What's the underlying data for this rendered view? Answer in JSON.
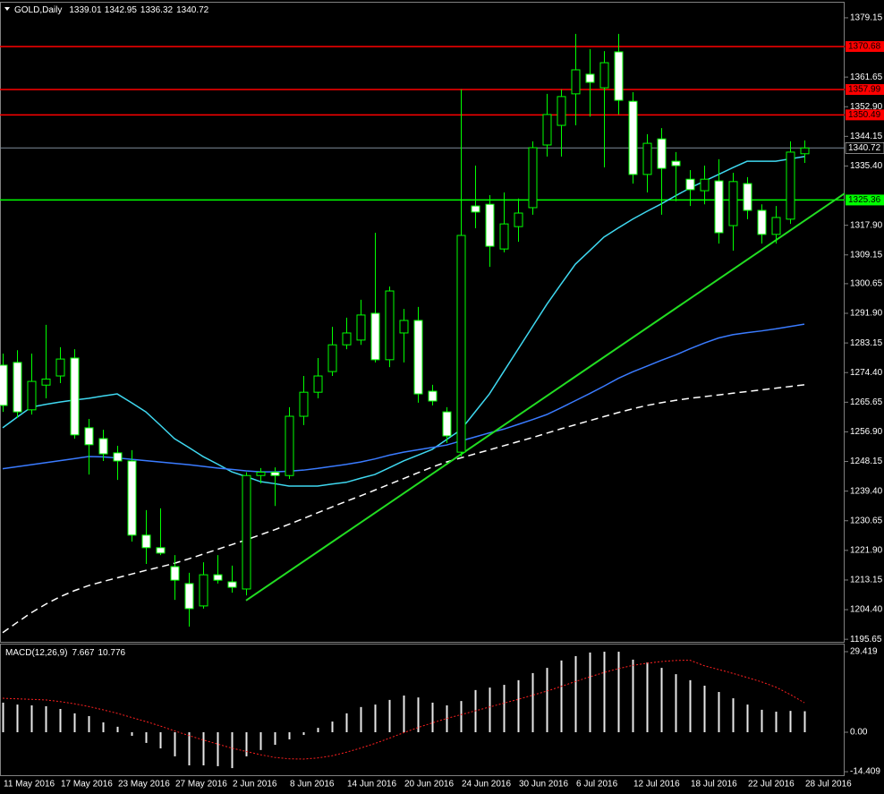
{
  "chart_data": [
    {
      "type": "candlestick",
      "title": "GOLD,Daily",
      "categories": [
        "11 May 2016",
        null,
        null,
        null,
        "17 May 2016",
        null,
        null,
        null,
        "23 May 2016",
        null,
        null,
        null,
        "27 May 2016",
        null,
        null,
        null,
        "2 Jun 2016",
        null,
        null,
        null,
        "8 Jun 2016",
        null,
        null,
        null,
        "14 Jun 2016",
        null,
        null,
        null,
        "20 Jun 2016",
        null,
        null,
        null,
        "24 Jun 2016",
        null,
        null,
        null,
        "30 Jun 2016",
        null,
        null,
        null,
        "6 Jul 2016",
        null,
        null,
        null,
        "12 Jul 2016",
        null,
        null,
        null,
        "18 Jul 2016",
        null,
        null,
        null,
        "22 Jul 2016",
        null,
        null,
        null,
        "28 Jul 2016"
      ],
      "open": [
        1276.6,
        1277.4,
        1263.4,
        1270.7,
        1273.4,
        1278.7,
        1258.1,
        1254.9,
        1250.7,
        1248.3,
        1226.4,
        1222.7,
        1217.1,
        1212.1,
        1205.5,
        1214.7,
        1212.6,
        1210.5,
        1244.0,
        1245.0,
        1244.0,
        1261.5,
        1268.6,
        1274.7,
        1282.6,
        1284.0,
        1291.9,
        1278.2,
        1286.1,
        1289.8,
        1268.9,
        1262.8,
        1250.9,
        1323.6,
        1324.1,
        1310.9,
        1317.5,
        1323.1,
        1341.6,
        1347.4,
        1356.7,
        1362.5,
        1358.5,
        1369.1,
        1354.5,
        1332.9,
        1343.4,
        1336.8,
        1331.5,
        1328.1,
        1331.0,
        1317.8,
        1330.2,
        1322.3,
        1315.2,
        1319.7,
        1339.01
      ],
      "high": [
        1280.0,
        1281.0,
        1280.0,
        1288.5,
        1281.9,
        1281.3,
        1260.7,
        1257.5,
        1252.8,
        1251.5,
        1233.8,
        1234.3,
        1220.5,
        1215.3,
        1218.4,
        1220.5,
        1217.4,
        1245.0,
        1246.2,
        1246.4,
        1264.2,
        1273.4,
        1278.7,
        1287.9,
        1290.6,
        1295.9,
        1315.7,
        1299.8,
        1293.2,
        1293.8,
        1270.8,
        1264.2,
        1358.0,
        1335.5,
        1326.8,
        1327.6,
        1325.8,
        1342.7,
        1356.7,
        1358.0,
        1374.4,
        1369.9,
        1369.3,
        1374.4,
        1357.2,
        1344.8,
        1346.6,
        1339.5,
        1334.2,
        1335.5,
        1337.4,
        1333.4,
        1332.1,
        1324.1,
        1323.6,
        1342.7,
        1342.95
      ],
      "low": [
        1262.8,
        1261.0,
        1262.0,
        1266.8,
        1271.3,
        1254.9,
        1244.3,
        1248.3,
        1242.7,
        1224.5,
        1217.9,
        1220.5,
        1207.3,
        1199.4,
        1204.7,
        1212.1,
        1209.4,
        1208.6,
        1241.7,
        1235.0,
        1243.0,
        1258.9,
        1266.8,
        1273.4,
        1281.3,
        1282.6,
        1277.4,
        1276.0,
        1277.4,
        1265.5,
        1264.7,
        1253.6,
        1249.6,
        1317.0,
        1305.6,
        1309.9,
        1313.0,
        1321.0,
        1338.2,
        1338.2,
        1347.4,
        1350.0,
        1335.0,
        1350.6,
        1330.2,
        1327.6,
        1321.0,
        1325.0,
        1323.6,
        1324.1,
        1312.5,
        1310.4,
        1319.7,
        1312.5,
        1312.5,
        1318.3,
        1336.32
      ],
      "close": [
        1264.7,
        1262.8,
        1271.8,
        1272.5,
        1278.4,
        1256.0,
        1253.1,
        1250.4,
        1248.3,
        1226.4,
        1222.7,
        1221.1,
        1213.1,
        1204.7,
        1214.7,
        1213.1,
        1211.0,
        1244.0,
        1245.0,
        1244.0,
        1261.5,
        1268.6,
        1273.4,
        1282.6,
        1286.1,
        1291.4,
        1278.2,
        1298.5,
        1289.8,
        1268.1,
        1266.0,
        1255.7,
        1314.9,
        1321.8,
        1311.7,
        1318.3,
        1321.5,
        1340.8,
        1350.6,
        1355.9,
        1363.8,
        1360.1,
        1365.9,
        1354.8,
        1332.9,
        1342.1,
        1334.7,
        1335.5,
        1328.4,
        1331.5,
        1315.7,
        1330.8,
        1322.3,
        1315.2,
        1320.2,
        1339.5,
        1340.72
      ],
      "up_color": "#000000",
      "down_color": "#ffffff",
      "wick_color": "#00ff00",
      "moving_averages": [
        {
          "color": "#3fd8f0",
          "dash": false,
          "values": [
            1258.1,
            1261.2,
            1264.2,
            1265.0,
            1265.7,
            1266.3,
            1266.8,
            1267.5,
            1268.1,
            1265.5,
            1262.8,
            1258.9,
            1254.9,
            1252.3,
            1249.6,
            1247.4,
            1245.1,
            1243.7,
            1242.2,
            1241.6,
            1240.9,
            1240.9,
            1240.9,
            1241.5,
            1242.0,
            1243.2,
            1244.3,
            1246.3,
            1248.3,
            1250.0,
            1251.7,
            1254.6,
            1257.5,
            1262.8,
            1268.1,
            1274.7,
            1281.3,
            1287.9,
            1294.5,
            1300.5,
            1306.4,
            1310.4,
            1314.4,
            1317.1,
            1319.7,
            1322.0,
            1324.2,
            1326.6,
            1328.9,
            1330.9,
            1332.9,
            1334.9,
            1336.8,
            1336.8,
            1336.8,
            1337.5,
            1338.2
          ]
        },
        {
          "color": "#3a7bff",
          "dash": false,
          "values": [
            1246.0,
            1246.6,
            1247.2,
            1247.8,
            1248.4,
            1249.0,
            1249.6,
            1249.5,
            1249.2,
            1248.8,
            1248.4,
            1248.0,
            1247.6,
            1247.2,
            1246.7,
            1246.2,
            1245.8,
            1245.4,
            1245.1,
            1245.1,
            1245.3,
            1245.6,
            1246.1,
            1246.7,
            1247.3,
            1248.0,
            1248.9,
            1250.0,
            1250.9,
            1251.6,
            1252.3,
            1253.0,
            1254.2,
            1255.4,
            1256.6,
            1257.7,
            1259.1,
            1260.5,
            1262.0,
            1264.0,
            1266.1,
            1268.2,
            1270.4,
            1272.7,
            1274.6,
            1276.3,
            1278.0,
            1279.6,
            1281.4,
            1283.1,
            1284.6,
            1285.6,
            1286.2,
            1286.7,
            1287.3,
            1288.0,
            1288.7
          ]
        },
        {
          "color": "#ffffff",
          "dash": true,
          "values": [
            1197.6,
            1200.6,
            1203.5,
            1206.0,
            1208.2,
            1210.0,
            1211.5,
            1212.7,
            1213.8,
            1214.9,
            1216.0,
            1217.0,
            1218.1,
            1219.4,
            1220.8,
            1222.2,
            1223.6,
            1225.0,
            1226.5,
            1228.0,
            1229.6,
            1231.3,
            1233.0,
            1234.7,
            1236.4,
            1238.0,
            1239.7,
            1241.4,
            1243.1,
            1244.8,
            1246.5,
            1248.0,
            1249.2,
            1250.4,
            1251.6,
            1252.8,
            1254.0,
            1255.2,
            1256.5,
            1257.8,
            1259.0,
            1260.2,
            1261.4,
            1262.6,
            1263.7,
            1264.7,
            1265.5,
            1266.2,
            1266.8,
            1267.3,
            1267.8,
            1268.3,
            1268.8,
            1269.3,
            1269.8,
            1270.3,
            1270.8
          ]
        }
      ],
      "levels": [
        {
          "value": 1370.68,
          "color": "#ff0000",
          "text_color": "#000000"
        },
        {
          "value": 1357.99,
          "color": "#ff0000",
          "text_color": "#000000"
        },
        {
          "value": 1350.49,
          "color": "#ff0000",
          "text_color": "#000000"
        },
        {
          "value": 1325.36,
          "color": "#00ff00",
          "text_color": "#000000"
        }
      ],
      "current_price_line": true,
      "current_price_color": "#7f8c9a",
      "trendline": [
        1207.1,
        1327.3
      ],
      "trendline_color": "#22dd22",
      "ylim": [
        1194.9,
        1382.3
      ],
      "yticks": [
        1379.15,
        1361.65,
        {
          "value": 1352.9,
          "label": "1352.90"
        },
        1344.15,
        {
          "value": 1335.4,
          "label": "1335.40"
        },
        {
          "value": 1317.9,
          "label": "1317.90"
        },
        1309.15,
        1300.65,
        {
          "value": 1291.9,
          "label": "1291.90"
        },
        1283.15,
        {
          "value": 1274.4,
          "label": "1274.40"
        },
        1265.65,
        {
          "value": 1256.9,
          "label": "1256.90"
        },
        1248.15,
        {
          "value": 1239.4,
          "label": "1239.40"
        },
        1230.65,
        {
          "value": 1221.9,
          "label": "1221.90"
        },
        1213.15,
        {
          "value": 1204.4,
          "label": "1204.40"
        },
        1195.65
      ]
    },
    {
      "type": "macd",
      "title": "MACD(12,26,9)",
      "histogram": {
        "color": "#e8e8e8",
        "values": [
          10.8,
          10.1,
          9.8,
          9.5,
          8.5,
          6.9,
          5.9,
          3.6,
          2.0,
          -1.3,
          -3.9,
          -5.9,
          -8.8,
          -12.1,
          -12.1,
          -12.4,
          -13.1,
          -8.8,
          -6.5,
          -4.6,
          -2.6,
          -1.0,
          1.6,
          3.9,
          6.9,
          9.2,
          10.1,
          11.8,
          13.4,
          12.7,
          10.8,
          9.8,
          11.4,
          15.4,
          16.3,
          17.3,
          19.0,
          21.6,
          23.5,
          26.2,
          27.8,
          29.1,
          29.4,
          29.4,
          26.5,
          25.5,
          23.5,
          21.2,
          19.0,
          17.0,
          14.7,
          12.4,
          10.1,
          8.2,
          7.5,
          7.8,
          7.667
        ]
      },
      "signal": {
        "color": "#ff2020",
        "values": [
          12.4,
          12.2,
          12.0,
          11.8,
          11.2,
          10.4,
          9.4,
          8.2,
          6.9,
          5.4,
          3.9,
          2.3,
          0.5,
          -1.2,
          -2.8,
          -4.3,
          -5.8,
          -7.0,
          -8.2,
          -9.2,
          -9.7,
          -9.8,
          -9.4,
          -8.6,
          -7.3,
          -5.8,
          -4.1,
          -2.2,
          -0.2,
          1.7,
          3.4,
          5.0,
          6.4,
          7.8,
          9.2,
          10.6,
          12.0,
          13.5,
          15.0,
          16.7,
          18.5,
          20.2,
          21.8,
          23.2,
          24.4,
          25.2,
          25.8,
          26.2,
          26.3,
          24.3,
          22.9,
          21.5,
          20.0,
          18.4,
          16.5,
          13.8,
          10.776
        ]
      },
      "ylim": [
        -15.69,
        32.03
      ],
      "yticks": [
        29.419,
        {
          "value": 0,
          "label": "0.00"
        },
        -14.409
      ]
    }
  ]
}
